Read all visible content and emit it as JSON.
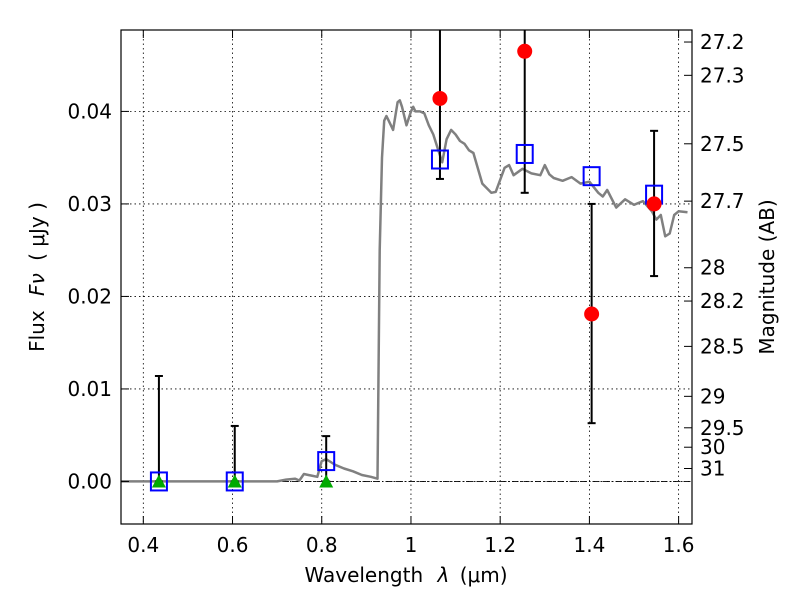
{
  "chart_data": {
    "type": "scatter",
    "xlabel": "Wavelength",
    "xlabel_symbol": "λ",
    "xlabel_unit": "(μm)",
    "ylabel": "Flux",
    "ylabel_symbol": "Fν",
    "ylabel_unit": "( μJy )",
    "ylabel_right": "Magnitude (AB)",
    "xlim": [
      0.35,
      1.63
    ],
    "ylim": [
      -0.0046,
      0.0488
    ],
    "grid": true,
    "x_ticks": [
      0.4,
      0.6,
      0.8,
      1.0,
      1.2,
      1.4,
      1.6
    ],
    "x_tick_labels": [
      "0.4",
      "0.6",
      "0.8",
      "1",
      "1.2",
      "1.4",
      "1.6"
    ],
    "y_ticks": [
      0.0,
      0.01,
      0.02,
      0.03,
      0.04
    ],
    "y_tick_labels": [
      "0.00",
      "0.01",
      "0.02",
      "0.03",
      "0.04"
    ],
    "mag_ticks": [
      {
        "flux": 0.0475,
        "label": "27.2"
      },
      {
        "flux": 0.0439,
        "label": "27.3"
      },
      {
        "flux": 0.0365,
        "label": "27.5"
      },
      {
        "flux": 0.0303,
        "label": "27.7"
      },
      {
        "flux": 0.0231,
        "label": "28"
      },
      {
        "flux": 0.0195,
        "label": "28.2"
      },
      {
        "flux": 0.0146,
        "label": "28.5"
      },
      {
        "flux": 0.0092,
        "label": "29"
      },
      {
        "flux": 0.0058,
        "label": "29.5"
      },
      {
        "flux": 0.0037,
        "label": "30"
      },
      {
        "flux": 0.0014,
        "label": "31"
      }
    ],
    "model_line": {
      "color": "#808080",
      "x": [
        0.35,
        0.5,
        0.7,
        0.72,
        0.74,
        0.75,
        0.76,
        0.77,
        0.78,
        0.79,
        0.8,
        0.81,
        0.82,
        0.83,
        0.85,
        0.87,
        0.89,
        0.91,
        0.925,
        0.93,
        0.935,
        0.94,
        0.945,
        0.95,
        0.96,
        0.97,
        0.975,
        0.98,
        0.99,
        1.0,
        1.005,
        1.01,
        1.02,
        1.03,
        1.04,
        1.05,
        1.06,
        1.07,
        1.08,
        1.09,
        1.1,
        1.11,
        1.12,
        1.13,
        1.14,
        1.16,
        1.18,
        1.19,
        1.21,
        1.22,
        1.23,
        1.25,
        1.27,
        1.29,
        1.3,
        1.31,
        1.32,
        1.34,
        1.36,
        1.38,
        1.4,
        1.42,
        1.43,
        1.44,
        1.46,
        1.48,
        1.5,
        1.52,
        1.54,
        1.55,
        1.56,
        1.57,
        1.58,
        1.59,
        1.6,
        1.62
      ],
      "y": [
        0.0,
        0.0,
        0.0,
        0.0002,
        0.0003,
        0.0001,
        0.0008,
        0.0007,
        0.0006,
        0.0005,
        0.0022,
        0.0024,
        0.0021,
        0.0018,
        0.0014,
        0.0011,
        0.0007,
        0.0005,
        0.0003,
        0.025,
        0.035,
        0.039,
        0.0395,
        0.039,
        0.038,
        0.041,
        0.0412,
        0.0405,
        0.0385,
        0.04,
        0.0405,
        0.04,
        0.04,
        0.0398,
        0.0385,
        0.0375,
        0.036,
        0.0345,
        0.037,
        0.038,
        0.0375,
        0.0368,
        0.0365,
        0.0358,
        0.0355,
        0.0322,
        0.0312,
        0.0313,
        0.0339,
        0.0342,
        0.0331,
        0.0338,
        0.0333,
        0.0331,
        0.0342,
        0.0332,
        0.0328,
        0.0325,
        0.0329,
        0.0322,
        0.0324,
        0.0312,
        0.0308,
        0.0315,
        0.0296,
        0.0305,
        0.0299,
        0.0303,
        0.0292,
        0.0283,
        0.0288,
        0.0265,
        0.0268,
        0.0288,
        0.0292,
        0.0291
      ]
    },
    "series": [
      {
        "marker": "square-open",
        "color": "#0000ff",
        "x": [
          0.435,
          0.605,
          0.81,
          1.065,
          1.255,
          1.405,
          1.545
        ],
        "y": [
          0.0,
          0.0,
          0.0022,
          0.0348,
          0.0354,
          0.033,
          0.031
        ]
      },
      {
        "marker": "circle",
        "color": "#ff0000",
        "x": [
          1.065,
          1.255,
          1.405,
          1.545
        ],
        "y": [
          0.0414,
          0.0465,
          0.0181,
          0.03
        ]
      },
      {
        "marker": "triangle",
        "color": "#00aa00",
        "x": [
          0.435,
          0.605,
          0.81
        ],
        "y": [
          0.0,
          0.0,
          0.0
        ]
      }
    ],
    "error_bars": [
      {
        "x": 0.435,
        "low": 0.0,
        "high": 0.0114
      },
      {
        "x": 0.605,
        "low": 0.0,
        "high": 0.006
      },
      {
        "x": 0.81,
        "low": 0.0,
        "high": 0.0049
      },
      {
        "x": 1.065,
        "low": 0.0327,
        "high": 0.05
      },
      {
        "x": 1.255,
        "low": 0.0312,
        "high": 0.05
      },
      {
        "x": 1.405,
        "low": 0.0063,
        "high": 0.03
      },
      {
        "x": 1.545,
        "low": 0.0222,
        "high": 0.0379
      }
    ]
  }
}
